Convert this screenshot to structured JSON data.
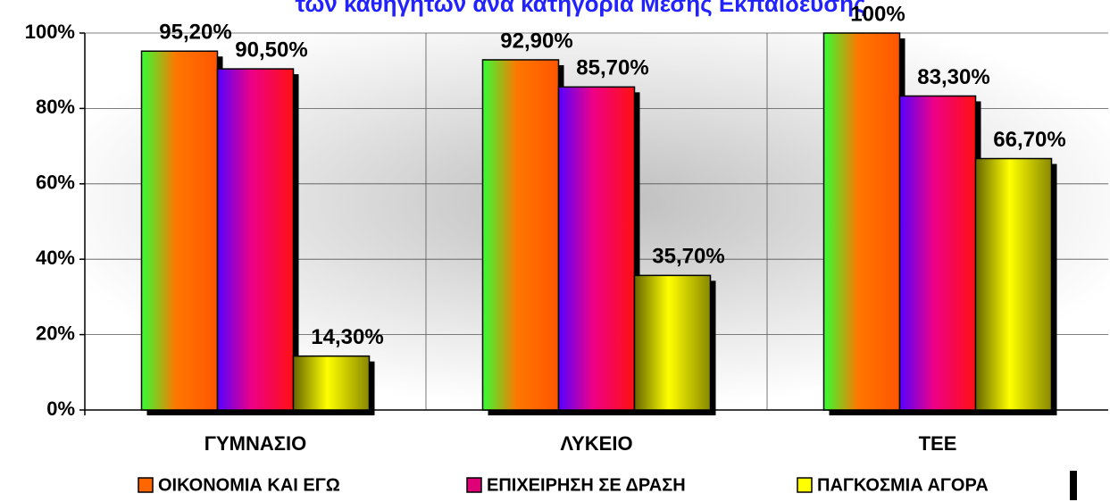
{
  "chart_data": {
    "type": "bar",
    "title": "των καθηγητών ανά κατηγορία Μέσης Εκπαίδευσης",
    "categories": [
      "ΓΥΜΝΑΣΙΟ",
      "ΛΥΚΕΙΟ",
      "ΤΕΕ"
    ],
    "series": [
      {
        "name": "ΟΙΚΟΝΟΜΙΑ ΚΑΙ ΕΓΩ",
        "color": "#ff6600",
        "values": [
          95.2,
          92.9,
          100
        ],
        "value_labels": [
          "95,20%",
          "92,90%",
          "100%"
        ]
      },
      {
        "name": "ΕΠΙΧΕΙΡΗΣΗ ΣΕ ΔΡΑΣΗ",
        "color": "#dd0077",
        "values": [
          90.5,
          85.7,
          83.3
        ],
        "value_labels": [
          "90,50%",
          "85,70%",
          "83,30%"
        ]
      },
      {
        "name": "ΠΑΓΚΟΣΜΙΑ ΑΓΟΡΑ",
        "color": "#ffff00",
        "values": [
          14.3,
          35.7,
          66.7
        ],
        "value_labels": [
          "14,30%",
          "35,70%",
          "66,70%"
        ]
      }
    ],
    "ylim": [
      0,
      100
    ],
    "yticks": [
      {
        "value": 0,
        "label": "0%"
      },
      {
        "value": 20,
        "label": "20%"
      },
      {
        "value": 40,
        "label": "40%"
      },
      {
        "value": 60,
        "label": "60%"
      },
      {
        "value": 80,
        "label": "80%"
      },
      {
        "value": 100,
        "label": "100%"
      }
    ],
    "grid": true
  }
}
